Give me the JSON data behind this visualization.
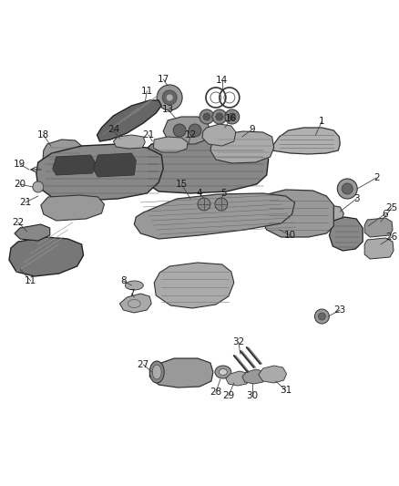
{
  "bg_color": "#ffffff",
  "fig_width": 4.38,
  "fig_height": 5.33,
  "dpi": 100,
  "font_size": 7.5,
  "label_color": "#1a1a1a",
  "line_color": "#444444",
  "part_color_dark": "#555555",
  "part_color_mid": "#888888",
  "part_color_light": "#bbbbbb",
  "part_ec": "#333333"
}
